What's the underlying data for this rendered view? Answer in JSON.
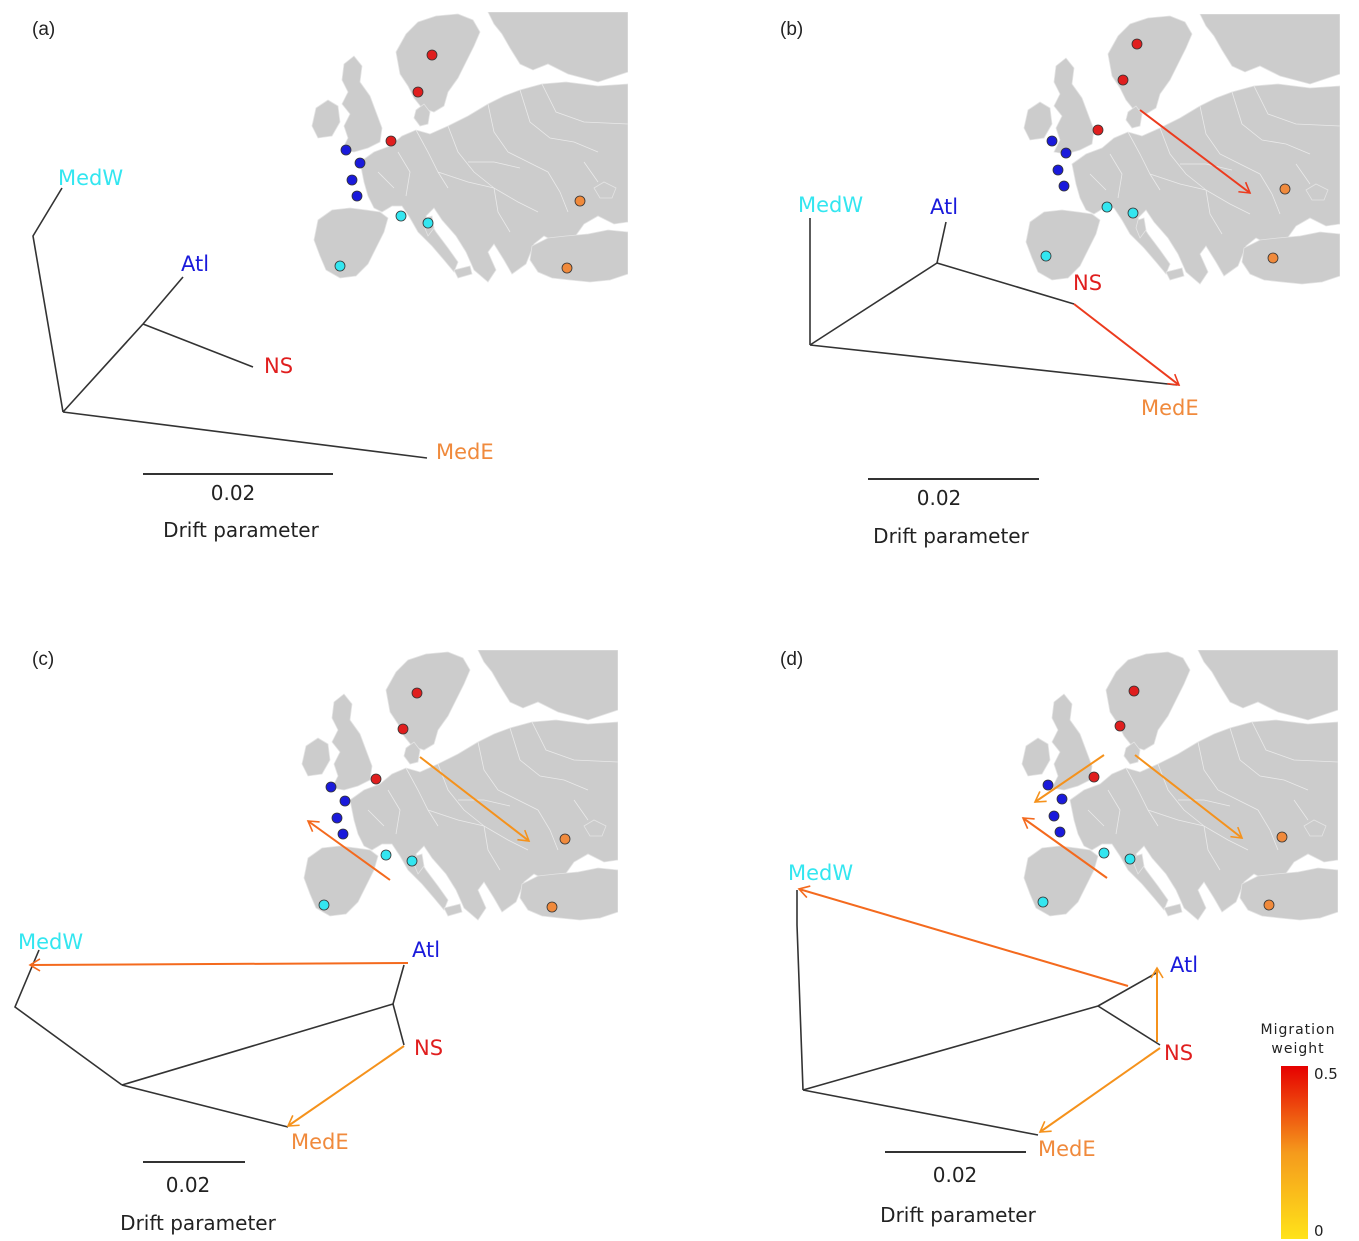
{
  "panels": [
    {
      "label": "(a)",
      "pops": [
        "MedW",
        "Atl",
        "NS",
        "MedE"
      ],
      "scale_value": "0.02",
      "scale_label": "Drift parameter"
    },
    {
      "label": "(b)",
      "pops": [
        "MedW",
        "Atl",
        "NS",
        "MedE"
      ],
      "scale_value": "0.02",
      "scale_label": "Drift parameter"
    },
    {
      "label": "(c)",
      "pops": [
        "MedW",
        "Atl",
        "NS",
        "MedE"
      ],
      "scale_value": "0.02",
      "scale_label": "Drift parameter"
    },
    {
      "label": "(d)",
      "pops": [
        "MedW",
        "Atl",
        "NS",
        "MedE"
      ],
      "scale_value": "0.02",
      "scale_label": "Drift parameter"
    }
  ],
  "colors": {
    "MedW": "#33e6f0",
    "Atl": "#1a1adb",
    "NS": "#e01e1e",
    "MedE": "#f08a3c"
  },
  "legend": {
    "title_line1": "Migration",
    "title_line2": "weight",
    "max": "0.5",
    "min": "0",
    "color_high": "#e60000",
    "color_low": "#ffe31a"
  },
  "migration_edges": [
    {
      "panel": "b",
      "from": "NS",
      "to": "MedE",
      "weight": 0.45
    },
    {
      "panel": "c",
      "from": "Atl",
      "to": "MedW",
      "weight": 0.35
    },
    {
      "panel": "c",
      "from": "NS",
      "to": "MedE",
      "weight": 0.25
    },
    {
      "panel": "d",
      "from": "Atl",
      "to": "MedW",
      "weight": 0.35
    },
    {
      "panel": "d",
      "from": "NS",
      "to": "Atl",
      "weight": 0.2
    },
    {
      "panel": "d",
      "from": "NS",
      "to": "MedE",
      "weight": 0.2
    }
  ]
}
